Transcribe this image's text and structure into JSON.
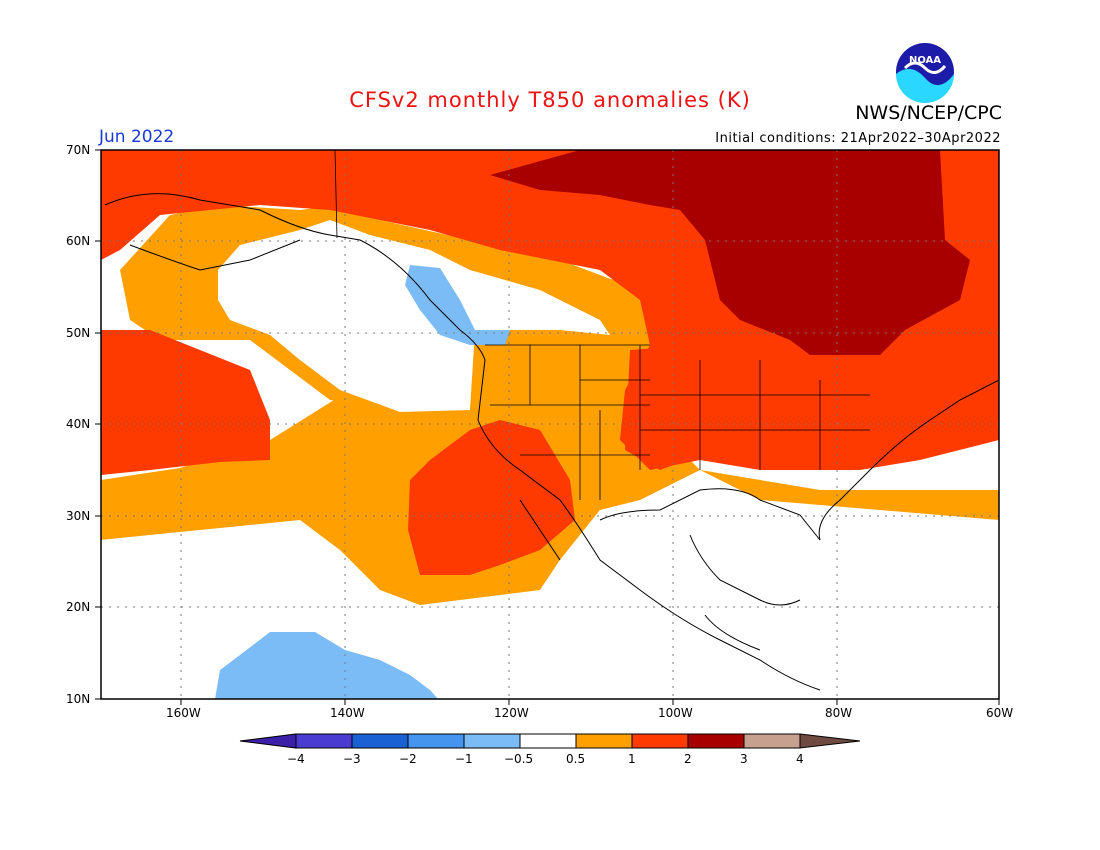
{
  "title": "CFSv2 monthly T850 anomalies (K)",
  "agency": "NWS/NCEP/CPC",
  "logo_text": "NOAA",
  "valid_month": "Jun 2022",
  "initial_conditions": "Initial conditions: 21Apr2022–30Apr2022",
  "map": {
    "lat_labels": [
      "70N",
      "60N",
      "50N",
      "40N",
      "30N",
      "20N",
      "10N"
    ],
    "lon_labels": [
      "160W",
      "140W",
      "120W",
      "100W",
      "80W",
      "60W"
    ]
  },
  "colorbar": {
    "labels": [
      "−4",
      "−3",
      "−2",
      "−1",
      "−0.5",
      "0.5",
      "1",
      "2",
      "3",
      "4"
    ],
    "colors": [
      "#3c20a8",
      "#4a3cd0",
      "#1a62d4",
      "#4595ee",
      "#7cbcf6",
      "#ffffff",
      "#ff9f00",
      "#ff3a00",
      "#a80000",
      "#c8a090",
      "#6e4a40"
    ]
  },
  "colors": {
    "warm1": "#ff9f00",
    "warm2": "#ff3a00",
    "warm3": "#a80000",
    "cool1": "#7cbcf6",
    "cool2": "#4595ee"
  }
}
